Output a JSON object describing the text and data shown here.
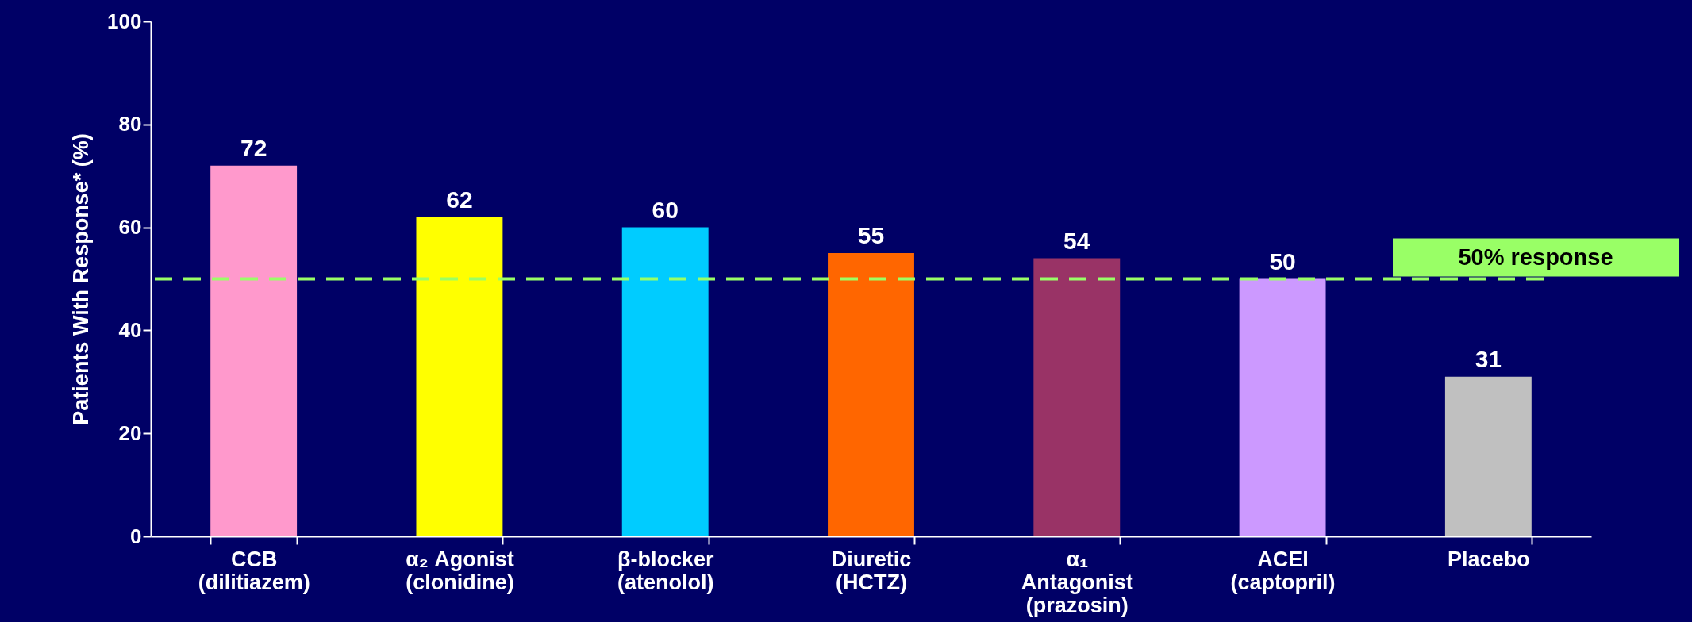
{
  "chart_data": {
    "type": "bar",
    "ylabel": "Patients With Response* (%)",
    "categories": [
      "CCB\n(dilitiazem)",
      "α₂ Agonist\n(clonidine)",
      "β-blocker\n(atenolol)",
      "Diuretic\n(HCTZ)",
      "α₁\nAntagonist\n(prazosin)",
      "ACEI\n(captopril)",
      "Placebo"
    ],
    "values": [
      72,
      62,
      60,
      55,
      54,
      50,
      31
    ],
    "colors": [
      "#ff99cc",
      "#ffff00",
      "#00ccff",
      "#ff6600",
      "#993366",
      "#cc99ff",
      "#c0c0c0"
    ],
    "ylim": [
      0,
      100
    ],
    "yticks": [
      0,
      20,
      40,
      60,
      80,
      100
    ],
    "data_labels": true,
    "grid": false,
    "ref_lines": [
      {
        "axis": "y",
        "value": 50,
        "label": "50% response",
        "color": "#99ff66",
        "line_style": "dashed"
      }
    ]
  }
}
